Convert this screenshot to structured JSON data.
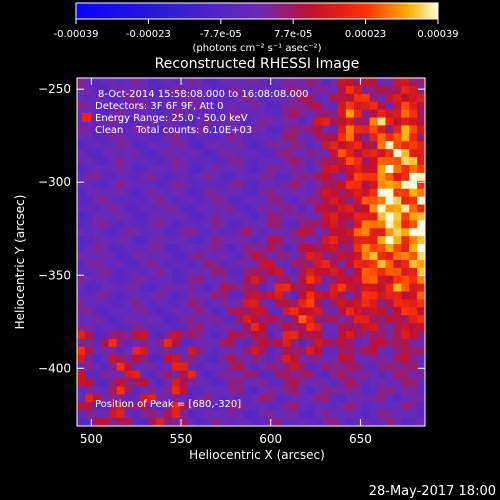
{
  "chart_data": {
    "type": "heatmap",
    "title": "Reconstructed RHESSI Image",
    "xlabel": "Heliocentric X (arcsec)",
    "ylabel": "Heliocentric Y (arcsec)",
    "xlim": [
      492,
      686
    ],
    "ylim": [
      -431,
      -244
    ],
    "x_ticks": [
      500,
      550,
      600,
      650
    ],
    "y_ticks": [
      -250,
      -300,
      -350,
      -400
    ],
    "colorbar": {
      "ticks": [
        "-0.00039",
        "-0.00023",
        "-7.7e-05",
        "7.7e-05",
        "0.00023",
        "0.00039"
      ],
      "unit_label": "(photons cm⁻² s⁻¹ asec⁻²)",
      "range": [
        -0.00039,
        0.00039
      ]
    },
    "annotations": {
      "time": "8-Oct-2014 15:58:08.000 to 16:08:08.000",
      "detectors": "Detectors: 3F 6F 9F, Att 0",
      "energy": "Energy Range: 25.0 - 50.0 keV",
      "clean": "Clean    Total counts: 6.10E+03",
      "peak": "Position of Peak = [680,-320]"
    },
    "peak_position": [
      680,
      -320
    ],
    "date_stamp": "28-May-2017 18:00"
  },
  "colors": {
    "background": "#000000",
    "negative": "#1a10ff",
    "zero": "#6a2ab8",
    "positive_mid": "#ff2000",
    "positive_high": "#fff6b0"
  }
}
